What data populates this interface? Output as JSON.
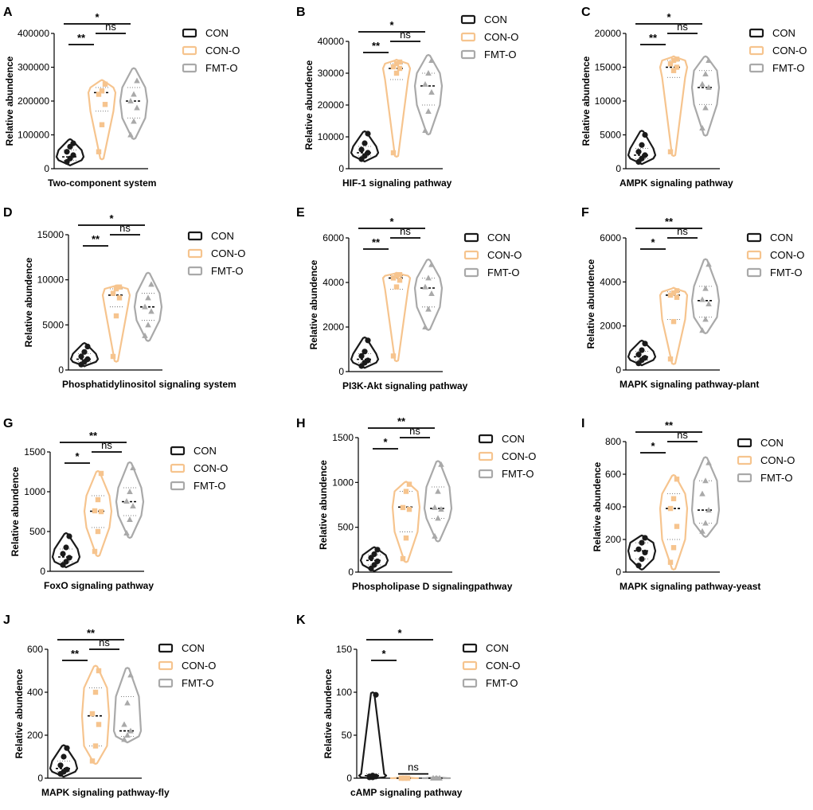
{
  "colors": {
    "CON": "#1a1a1a",
    "CON-O": "#f6c48e",
    "FMT-O": "#a9a9a9"
  },
  "legend": [
    "CON",
    "CON-O",
    "FMT-O"
  ],
  "chart_data": [
    {
      "panel": "A",
      "type": "violin",
      "xlabel": "Two-component system",
      "ylabel": "Relative abundence",
      "ylim": [
        0,
        400000
      ],
      "ticks": [
        0,
        100000,
        200000,
        300000,
        400000
      ],
      "tick_labels": [
        "0",
        "100000",
        "200000",
        "300000",
        "400000"
      ],
      "series": [
        {
          "name": "CON",
          "points": [
            20000,
            30000,
            40000,
            50000,
            65000,
            75000
          ],
          "median": 35000,
          "q1": 25000,
          "q3": 55000,
          "min": 12000,
          "max": 85000
        },
        {
          "name": "CON-O",
          "points": [
            50000,
            130000,
            190000,
            220000,
            230000,
            250000
          ],
          "median": 225000,
          "q1": 170000,
          "q3": 240000,
          "min": 30000,
          "max": 260000
        },
        {
          "name": "FMT-O",
          "points": [
            100000,
            140000,
            180000,
            200000,
            220000,
            260000
          ],
          "median": 200000,
          "q1": 150000,
          "q3": 240000,
          "min": 90000,
          "max": 295000
        }
      ],
      "comparisons": [
        {
          "from": 0,
          "to": 1,
          "label": "**",
          "level": 1
        },
        {
          "from": 1,
          "to": 2,
          "label": "ns",
          "level": 2
        },
        {
          "from": 0,
          "to": 2,
          "label": "*",
          "level": 3
        }
      ]
    },
    {
      "panel": "B",
      "type": "violin",
      "xlabel": "HIF-1 signaling pathway",
      "ylabel": "Relative abundence",
      "ylim": [
        0,
        40000
      ],
      "ticks": [
        0,
        10000,
        20000,
        30000,
        40000
      ],
      "tick_labels": [
        "0",
        "10000",
        "20000",
        "30000",
        "40000"
      ],
      "series": [
        {
          "name": "CON",
          "points": [
            3000,
            4000,
            5000,
            6000,
            8000,
            11000
          ],
          "median": 5000,
          "q1": 4000,
          "q3": 7000,
          "min": 2500,
          "max": 11500
        },
        {
          "name": "CON-O",
          "points": [
            5000,
            30000,
            31500,
            32000,
            33000,
            33500
          ],
          "median": 31500,
          "q1": 28000,
          "q3": 33000,
          "min": 4000,
          "max": 34000
        },
        {
          "name": "FMT-O",
          "points": [
            12000,
            18000,
            24000,
            26500,
            30000,
            34000
          ],
          "median": 26000,
          "q1": 20000,
          "q3": 30000,
          "min": 11000,
          "max": 35500
        }
      ],
      "comparisons": [
        {
          "from": 0,
          "to": 1,
          "label": "**",
          "level": 1
        },
        {
          "from": 1,
          "to": 2,
          "label": "ns",
          "level": 2
        },
        {
          "from": 0,
          "to": 2,
          "label": "*",
          "level": 3
        }
      ]
    },
    {
      "panel": "C",
      "type": "violin",
      "xlabel": "AMPK signaling pathway",
      "ylabel": "Relative abundence",
      "ylim": [
        0,
        20000
      ],
      "ticks": [
        0,
        5000,
        10000,
        15000,
        20000
      ],
      "tick_labels": [
        "0",
        "5000",
        "10000",
        "15000",
        "20000"
      ],
      "series": [
        {
          "name": "CON",
          "points": [
            1000,
            1500,
            2000,
            2500,
            3500,
            5000
          ],
          "median": 2000,
          "q1": 1500,
          "q3": 3000,
          "min": 800,
          "max": 5500
        },
        {
          "name": "CON-O",
          "points": [
            2500,
            14500,
            15000,
            15500,
            16000,
            16200
          ],
          "median": 15000,
          "q1": 13500,
          "q3": 16000,
          "min": 2000,
          "max": 16500
        },
        {
          "name": "FMT-O",
          "points": [
            6000,
            9000,
            12000,
            12500,
            14000,
            16000
          ],
          "median": 12000,
          "q1": 9500,
          "q3": 14500,
          "min": 5000,
          "max": 16500
        }
      ],
      "comparisons": [
        {
          "from": 0,
          "to": 1,
          "label": "**",
          "level": 1
        },
        {
          "from": 1,
          "to": 2,
          "label": "ns",
          "level": 2
        },
        {
          "from": 0,
          "to": 2,
          "label": "*",
          "level": 3
        }
      ]
    },
    {
      "panel": "D",
      "type": "violin",
      "xlabel": "Phosphatidylinositol signaling system",
      "ylabel": "Relative abundence",
      "ylim": [
        0,
        15000
      ],
      "ticks": [
        0,
        5000,
        10000,
        15000
      ],
      "tick_labels": [
        "0",
        "5000",
        "10000",
        "15000"
      ],
      "series": [
        {
          "name": "CON",
          "points": [
            600,
            900,
            1200,
            1500,
            2000,
            2600
          ],
          "median": 1200,
          "q1": 900,
          "q3": 1800,
          "min": 500,
          "max": 2900
        },
        {
          "name": "CON-O",
          "points": [
            1500,
            6000,
            8000,
            8500,
            9000,
            9200
          ],
          "median": 8300,
          "q1": 7000,
          "q3": 9000,
          "min": 1000,
          "max": 9300
        },
        {
          "name": "FMT-O",
          "points": [
            3800,
            5000,
            6500,
            7000,
            8000,
            9500
          ],
          "median": 7000,
          "q1": 5500,
          "q3": 8500,
          "min": 3300,
          "max": 10700
        }
      ],
      "comparisons": [
        {
          "from": 0,
          "to": 1,
          "label": "**",
          "level": 1
        },
        {
          "from": 1,
          "to": 2,
          "label": "ns",
          "level": 2
        },
        {
          "from": 0,
          "to": 2,
          "label": "*",
          "level": 3
        }
      ]
    },
    {
      "panel": "E",
      "type": "violin",
      "xlabel": "PI3K-Akt signaling pathway",
      "ylabel": "Relative abundence",
      "ylim": [
        0,
        6000
      ],
      "ticks": [
        0,
        2000,
        4000,
        6000
      ],
      "tick_labels": [
        "0",
        "2000",
        "4000",
        "6000"
      ],
      "series": [
        {
          "name": "CON",
          "points": [
            250,
            400,
            500,
            700,
            900,
            1400
          ],
          "median": 550,
          "q1": 400,
          "q3": 800,
          "min": 200,
          "max": 1500
        },
        {
          "name": "CON-O",
          "points": [
            700,
            3800,
            4100,
            4200,
            4300,
            4350
          ],
          "median": 4200,
          "q1": 3700,
          "q3": 4300,
          "min": 500,
          "max": 4400
        },
        {
          "name": "FMT-O",
          "points": [
            2000,
            2800,
            3500,
            3800,
            4200,
            4800
          ],
          "median": 3750,
          "q1": 2900,
          "q3": 4200,
          "min": 1900,
          "max": 5000
        }
      ],
      "comparisons": [
        {
          "from": 0,
          "to": 1,
          "label": "**",
          "level": 1
        },
        {
          "from": 1,
          "to": 2,
          "label": "ns",
          "level": 2
        },
        {
          "from": 0,
          "to": 2,
          "label": "*",
          "level": 3
        }
      ]
    },
    {
      "panel": "F",
      "type": "violin",
      "xlabel": "MAPK signaling pathway-plant",
      "ylabel": "Relative abundence",
      "ylim": [
        0,
        6000
      ],
      "ticks": [
        0,
        2000,
        4000,
        6000
      ],
      "tick_labels": [
        "0",
        "2000",
        "4000",
        "6000"
      ],
      "series": [
        {
          "name": "CON",
          "points": [
            300,
            450,
            550,
            700,
            900,
            1200
          ],
          "median": 600,
          "q1": 450,
          "q3": 850,
          "min": 250,
          "max": 1300
        },
        {
          "name": "CON-O",
          "points": [
            500,
            2200,
            3300,
            3400,
            3500,
            3600
          ],
          "median": 3400,
          "q1": 2300,
          "q3": 3550,
          "min": 300,
          "max": 3700
        },
        {
          "name": "FMT-O",
          "points": [
            1800,
            2300,
            3000,
            3200,
            3700,
            4800
          ],
          "median": 3150,
          "q1": 2400,
          "q3": 3800,
          "min": 1700,
          "max": 5000
        }
      ],
      "comparisons": [
        {
          "from": 0,
          "to": 1,
          "label": "*",
          "level": 1
        },
        {
          "from": 1,
          "to": 2,
          "label": "ns",
          "level": 2
        },
        {
          "from": 0,
          "to": 2,
          "label": "**",
          "level": 3
        }
      ]
    },
    {
      "panel": "G",
      "type": "violin",
      "xlabel": "FoxO signaling pathway",
      "ylabel": "Relative abundence",
      "ylim": [
        0,
        1500
      ],
      "ticks": [
        0,
        500,
        1000,
        1500
      ],
      "tick_labels": [
        "0",
        "500",
        "1000",
        "1500"
      ],
      "series": [
        {
          "name": "CON",
          "points": [
            80,
            120,
            170,
            220,
            300,
            440
          ],
          "median": 180,
          "q1": 120,
          "q3": 280,
          "min": 60,
          "max": 470
        },
        {
          "name": "CON-O",
          "points": [
            250,
            500,
            750,
            760,
            900,
            1230
          ],
          "median": 755,
          "q1": 550,
          "q3": 950,
          "min": 200,
          "max": 1250
        },
        {
          "name": "FMT-O",
          "points": [
            480,
            650,
            820,
            880,
            1000,
            1300
          ],
          "median": 875,
          "q1": 700,
          "q3": 1050,
          "min": 430,
          "max": 1360
        }
      ],
      "comparisons": [
        {
          "from": 0,
          "to": 1,
          "label": "*",
          "level": 1
        },
        {
          "from": 1,
          "to": 2,
          "label": "ns",
          "level": 2
        },
        {
          "from": 0,
          "to": 2,
          "label": "**",
          "level": 3
        }
      ]
    },
    {
      "panel": "H",
      "type": "violin",
      "xlabel": "Phospholipase D signalingpathway",
      "ylabel": "Relative abundence",
      "ylim": [
        0,
        1500
      ],
      "ticks": [
        0,
        500,
        1000,
        1500
      ],
      "tick_labels": [
        "0",
        "500",
        "1000",
        "1500"
      ],
      "series": [
        {
          "name": "CON",
          "points": [
            40,
            80,
            120,
            160,
            200,
            250
          ],
          "median": 130,
          "q1": 80,
          "q3": 190,
          "min": 20,
          "max": 270
        },
        {
          "name": "CON-O",
          "points": [
            150,
            380,
            700,
            720,
            900,
            980
          ],
          "median": 725,
          "q1": 450,
          "q3": 900,
          "min": 120,
          "max": 1000
        },
        {
          "name": "FMT-O",
          "points": [
            400,
            600,
            700,
            720,
            900,
            1200
          ],
          "median": 710,
          "q1": 600,
          "q3": 950,
          "min": 350,
          "max": 1230
        }
      ],
      "comparisons": [
        {
          "from": 0,
          "to": 1,
          "label": "*",
          "level": 1
        },
        {
          "from": 1,
          "to": 2,
          "label": "ns",
          "level": 2
        },
        {
          "from": 0,
          "to": 2,
          "label": "**",
          "level": 3
        }
      ]
    },
    {
      "panel": "I",
      "type": "violin",
      "xlabel": "MAPK signaling pathway-yeast",
      "ylabel": "Relative abundence",
      "ylim": [
        0,
        800
      ],
      "ticks": [
        0,
        200,
        400,
        600,
        800
      ],
      "tick_labels": [
        "0",
        "200",
        "400",
        "600",
        "800"
      ],
      "series": [
        {
          "name": "CON",
          "points": [
            40,
            80,
            120,
            140,
            180,
            210
          ],
          "median": 130,
          "q1": 80,
          "q3": 180,
          "min": 20,
          "max": 220
        },
        {
          "name": "CON-O",
          "points": [
            60,
            150,
            280,
            390,
            450,
            570
          ],
          "median": 390,
          "q1": 200,
          "q3": 480,
          "min": 20,
          "max": 590
        },
        {
          "name": "FMT-O",
          "points": [
            250,
            300,
            380,
            480,
            560,
            670
          ],
          "median": 380,
          "q1": 300,
          "q3": 560,
          "min": 220,
          "max": 700
        }
      ],
      "comparisons": [
        {
          "from": 0,
          "to": 1,
          "label": "*",
          "level": 1
        },
        {
          "from": 1,
          "to": 2,
          "label": "ns",
          "level": 2
        },
        {
          "from": 0,
          "to": 2,
          "label": "**",
          "level": 3
        }
      ]
    },
    {
      "panel": "J",
      "type": "violin",
      "xlabel": "MAPK signaling pathway-fly",
      "ylabel": "Relative abundence",
      "ylim": [
        0,
        600
      ],
      "ticks": [
        0,
        200,
        400,
        600
      ],
      "tick_labels": [
        "0",
        "200",
        "400",
        "600"
      ],
      "series": [
        {
          "name": "CON",
          "points": [
            20,
            30,
            40,
            60,
            100,
            140
          ],
          "median": 45,
          "q1": 30,
          "q3": 80,
          "min": 10,
          "max": 150
        },
        {
          "name": "CON-O",
          "points": [
            80,
            150,
            250,
            300,
            400,
            500
          ],
          "median": 290,
          "q1": 150,
          "q3": 420,
          "min": 70,
          "max": 520
        },
        {
          "name": "FMT-O",
          "points": [
            180,
            200,
            220,
            250,
            350,
            480
          ],
          "median": 220,
          "q1": 195,
          "q3": 380,
          "min": 170,
          "max": 510
        }
      ],
      "comparisons": [
        {
          "from": 0,
          "to": 1,
          "label": "**",
          "level": 1
        },
        {
          "from": 1,
          "to": 2,
          "label": "ns",
          "level": 2
        },
        {
          "from": 0,
          "to": 2,
          "label": "**",
          "level": 3
        }
      ]
    },
    {
      "panel": "K",
      "type": "violin",
      "xlabel": "cAMP signaling pathway",
      "ylabel": "Relative abundence",
      "ylim": [
        0,
        150
      ],
      "ticks": [
        0,
        50,
        100,
        150
      ],
      "tick_labels": [
        "0",
        "50",
        "100",
        "150"
      ],
      "series": [
        {
          "name": "CON",
          "points": [
            1,
            1,
            2,
            2,
            3,
            97
          ],
          "median": 3,
          "q1": 1,
          "q3": 5,
          "min": 0,
          "max": 99
        },
        {
          "name": "CON-O",
          "points": [
            0,
            0,
            0,
            0,
            0,
            0
          ],
          "median": 0,
          "q1": 0,
          "q3": 0,
          "min": 0,
          "max": 1
        },
        {
          "name": "FMT-O",
          "points": [
            0,
            0,
            0,
            0,
            0,
            0
          ],
          "median": 0,
          "q1": 0,
          "q3": 0,
          "min": 0,
          "max": 1
        }
      ],
      "comparisons": [
        {
          "from": 0,
          "to": 1,
          "label": "*",
          "level": 1
        },
        {
          "from": 1,
          "to": 2,
          "label": "ns",
          "level": 0
        },
        {
          "from": 0,
          "to": 2,
          "label": "*",
          "level": 3
        }
      ]
    }
  ]
}
